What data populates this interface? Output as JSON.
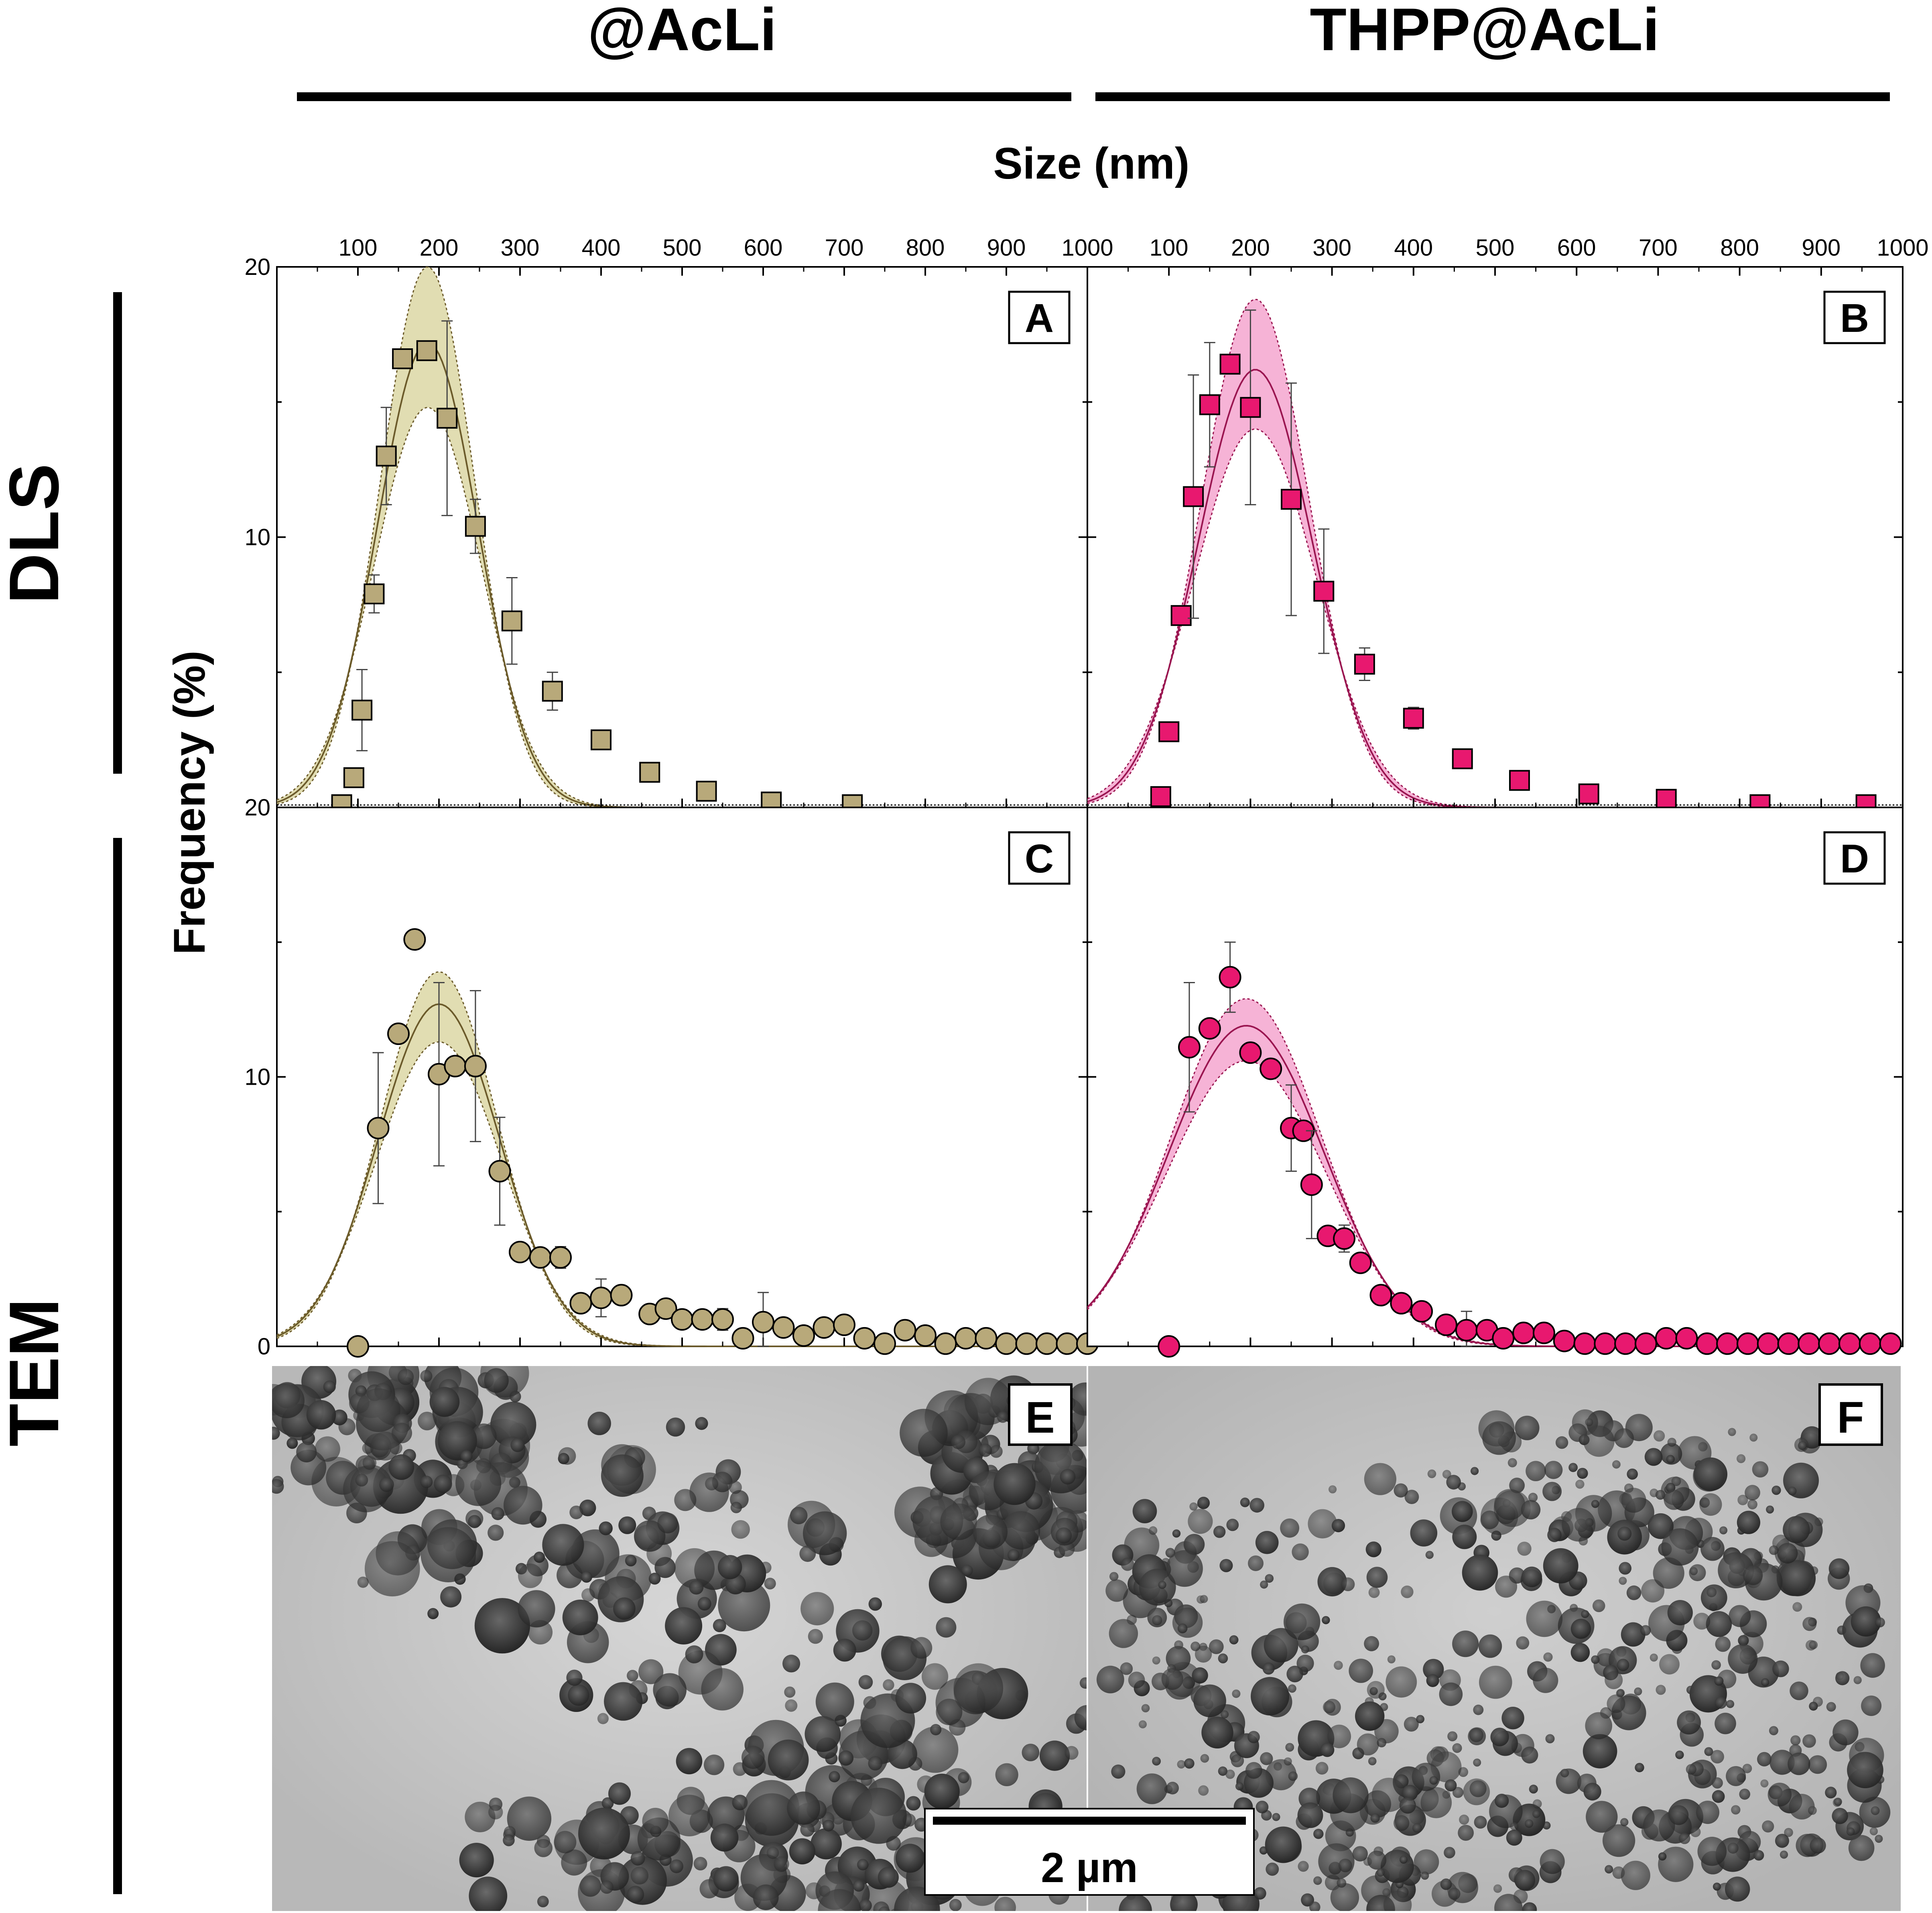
{
  "figure": {
    "col_headers": [
      "@AcLi",
      "THPP@AcLi"
    ],
    "row_headers": [
      "DLS",
      "TEM"
    ],
    "xlabel": "Size (nm)",
    "ylabel": "Frequency (%)",
    "x_tick_labels": [
      "100",
      "200",
      "300",
      "400",
      "500",
      "600",
      "700",
      "800",
      "900",
      "1000"
    ],
    "x_ticks": [
      100,
      200,
      300,
      400,
      500,
      600,
      700,
      800,
      900,
      1000
    ],
    "scale_bar_label": "2 µm"
  },
  "colors": {
    "acli_fill": "#b8a97a",
    "acli_band": "#dcd7a4",
    "acli_line": "#6b5a2a",
    "thpp_fill": "#e8186f",
    "thpp_band": "#f4a6cf",
    "thpp_line": "#9a1550"
  },
  "chart_data": [
    {
      "type": "scatter",
      "panel": "A",
      "method": "DLS",
      "sample": "@AcLi",
      "marker": "square",
      "xlim": [
        0,
        1000
      ],
      "ylim": [
        0,
        20
      ],
      "y_tick_labels": [
        "20",
        "10",
        "20"
      ],
      "x": [
        80,
        95,
        105,
        120,
        135,
        155,
        185,
        210,
        245,
        290,
        340,
        400,
        460,
        530,
        610,
        710
      ],
      "y": [
        0.1,
        1.1,
        3.6,
        7.9,
        13.0,
        16.6,
        16.9,
        14.4,
        10.4,
        6.9,
        4.3,
        2.5,
        1.3,
        0.6,
        0.2,
        0.1
      ],
      "err": [
        0,
        0,
        1.5,
        0.7,
        1.8,
        0,
        0,
        3.6,
        1.0,
        1.6,
        0.7,
        0,
        0,
        0,
        0,
        0
      ],
      "fit": {
        "mu": 186,
        "sigma": 62,
        "amp": 17.2
      },
      "band": {
        "upper_amp": 20.0,
        "upper_sigma": 58,
        "lower_amp": 14.8,
        "lower_sigma": 66
      }
    },
    {
      "type": "scatter",
      "panel": "B",
      "method": "DLS",
      "sample": "THPP@AcLi",
      "marker": "square",
      "xlim": [
        0,
        1000
      ],
      "ylim": [
        0,
        20
      ],
      "y_tick_labels": [
        "20",
        "10",
        "20"
      ],
      "x": [
        90,
        100,
        115,
        130,
        150,
        175,
        200,
        250,
        290,
        340,
        400,
        460,
        530,
        615,
        710,
        825,
        955
      ],
      "y": [
        0.4,
        2.8,
        7.1,
        11.5,
        14.9,
        16.4,
        14.8,
        11.4,
        8.0,
        5.3,
        3.3,
        1.8,
        1.0,
        0.5,
        0.3,
        0.1,
        0.1
      ],
      "err": [
        0,
        0,
        0,
        4.5,
        2.3,
        0,
        3.6,
        4.3,
        2.3,
        0.6,
        0.4,
        0,
        0,
        0,
        0,
        0,
        0
      ],
      "fit": {
        "mu": 206,
        "sigma": 70,
        "amp": 16.2
      },
      "band": {
        "upper_amp": 18.8,
        "upper_sigma": 66,
        "lower_amp": 14.0,
        "lower_sigma": 75
      }
    },
    {
      "type": "scatter",
      "panel": "C",
      "method": "TEM",
      "sample": "@AcLi",
      "marker": "circle",
      "xlim": [
        0,
        1000
      ],
      "ylim": [
        0,
        20
      ],
      "y_tick_labels": [
        "10",
        "0"
      ],
      "x": [
        100,
        125,
        150,
        170,
        200,
        220,
        245,
        275,
        300,
        325,
        350,
        375,
        400,
        425,
        460,
        480,
        500,
        525,
        550,
        575,
        600,
        625,
        650,
        675,
        700,
        725,
        750,
        775,
        800,
        825,
        850,
        875,
        900,
        925,
        950,
        975,
        1000
      ],
      "y": [
        0.0,
        8.1,
        11.6,
        15.1,
        10.1,
        10.4,
        10.4,
        6.5,
        3.5,
        3.3,
        3.3,
        1.6,
        1.8,
        1.9,
        1.2,
        1.4,
        1.0,
        1.0,
        1.0,
        0.3,
        0.9,
        0.7,
        0.4,
        0.7,
        0.8,
        0.3,
        0.1,
        0.6,
        0.4,
        0.1,
        0.3,
        0.3,
        0.1,
        0.1,
        0.1,
        0.1,
        0.1
      ],
      "err": [
        0,
        2.8,
        0,
        0,
        3.4,
        0,
        2.8,
        2.0,
        0,
        0,
        0.4,
        0,
        0.7,
        0.3,
        0,
        0,
        0,
        0,
        0.4,
        0,
        1.1,
        0,
        0,
        0,
        0,
        0,
        0,
        0,
        0,
        0,
        0,
        0,
        0,
        0,
        0,
        0,
        0
      ],
      "fit": {
        "mu": 200,
        "sigma": 75,
        "amp": 12.7
      },
      "band": {
        "upper_amp": 13.9,
        "upper_sigma": 72,
        "lower_amp": 11.3,
        "lower_sigma": 78
      }
    },
    {
      "type": "scatter",
      "panel": "D",
      "method": "TEM",
      "sample": "THPP@AcLi",
      "marker": "circle",
      "xlim": [
        0,
        1000
      ],
      "ylim": [
        0,
        20
      ],
      "y_tick_labels": [
        "10",
        "0"
      ],
      "x": [
        100,
        125,
        150,
        175,
        200,
        225,
        250,
        265,
        275,
        295,
        315,
        335,
        360,
        385,
        410,
        440,
        465,
        490,
        510,
        535,
        560,
        585,
        610,
        635,
        660,
        685,
        710,
        735,
        760,
        785,
        810,
        835,
        860,
        885,
        910,
        935,
        960,
        985
      ],
      "y": [
        0.0,
        11.1,
        11.8,
        13.7,
        10.9,
        10.3,
        8.1,
        8.0,
        6.0,
        4.1,
        4.0,
        3.1,
        1.9,
        1.6,
        1.3,
        0.8,
        0.6,
        0.6,
        0.3,
        0.5,
        0.5,
        0.2,
        0.1,
        0.1,
        0.1,
        0.1,
        0.3,
        0.3,
        0.1,
        0.1,
        0.1,
        0.1,
        0.1,
        0.1,
        0.1,
        0.1,
        0.1,
        0.1
      ],
      "err": [
        0,
        2.4,
        0,
        1.3,
        0,
        0,
        1.6,
        0,
        2.0,
        0,
        0.5,
        0.3,
        0,
        0,
        0,
        0,
        0.7,
        0,
        0,
        0,
        0,
        0,
        0,
        0,
        0,
        0,
        0,
        0,
        0,
        0,
        0,
        0,
        0,
        0,
        0,
        0,
        0,
        0
      ],
      "fit": {
        "mu": 195,
        "sigma": 95,
        "amp": 11.9
      },
      "band": {
        "upper_amp": 12.9,
        "upper_sigma": 92,
        "lower_amp": 10.6,
        "lower_sigma": 98
      }
    }
  ],
  "micrographs": [
    {
      "panel": "E",
      "sample": "@AcLi"
    },
    {
      "panel": "F",
      "sample": "THPP@AcLi"
    }
  ]
}
